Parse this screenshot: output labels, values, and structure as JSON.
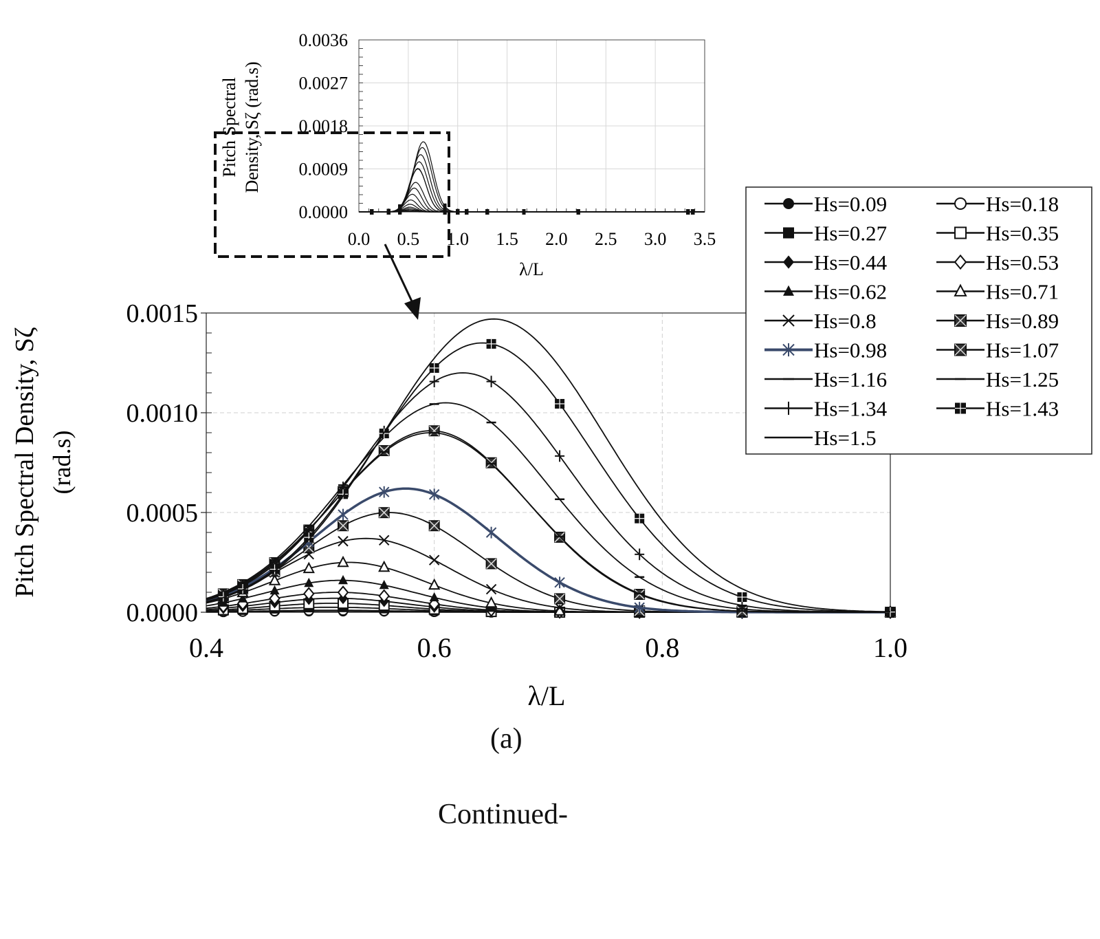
{
  "chart_data": [
    {
      "type": "line",
      "title": "",
      "xlabel": "λ/L",
      "ylabel": "Pitch Spectral Density, Sζ (rad.s)",
      "ylabel_line1": "Pitch Spectral Density, Sζ",
      "ylabel_line2": "(rad.s)",
      "xlim": [
        0.4,
        1.0
      ],
      "ylim": [
        0,
        0.0015
      ],
      "xticks": [
        "0.4",
        "0.6",
        "0.8",
        "1.0"
      ],
      "yticks": [
        "0.0000",
        "0.0005",
        "0.0010",
        "0.0015"
      ],
      "grid": true,
      "legend_position": "right",
      "marker_x": [
        0.415,
        0.432,
        0.46,
        0.49,
        0.52,
        0.556,
        0.6,
        0.65,
        0.71,
        0.78,
        0.87,
        1.0
      ],
      "series": [
        {
          "name": "Hs=0.09",
          "marker": "filled-circle",
          "peak": 3e-06,
          "peak_x": 0.51,
          "sigma": 0.06
        },
        {
          "name": "Hs=0.18",
          "marker": "open-circle",
          "peak": 1e-05,
          "peak_x": 0.51,
          "sigma": 0.06
        },
        {
          "name": "Hs=0.27",
          "marker": "filled-square",
          "peak": 2.5e-05,
          "peak_x": 0.51,
          "sigma": 0.06
        },
        {
          "name": "Hs=0.35",
          "marker": "open-square",
          "peak": 4.5e-05,
          "peak_x": 0.512,
          "sigma": 0.06
        },
        {
          "name": "Hs=0.44",
          "marker": "filled-diamond",
          "peak": 7e-05,
          "peak_x": 0.513,
          "sigma": 0.062
        },
        {
          "name": "Hs=0.53",
          "marker": "open-diamond",
          "peak": 0.0001,
          "peak_x": 0.515,
          "sigma": 0.064
        },
        {
          "name": "Hs=0.62",
          "marker": "filled-triangle",
          "peak": 0.00016,
          "peak_x": 0.518,
          "sigma": 0.066
        },
        {
          "name": "Hs=0.71",
          "marker": "open-triangle",
          "peak": 0.00025,
          "peak_x": 0.525,
          "sigma": 0.068
        },
        {
          "name": "Hs=0.8",
          "marker": "x",
          "peak": 0.00037,
          "peak_x": 0.54,
          "sigma": 0.072
        },
        {
          "name": "Hs=0.89",
          "marker": "boxed-x",
          "peak": 0.0005,
          "peak_x": 0.56,
          "sigma": 0.075
        },
        {
          "name": "Hs=0.98",
          "marker": "star",
          "peak": 0.00062,
          "peak_x": 0.575,
          "sigma": 0.08,
          "color": "#3a4a6b"
        },
        {
          "name": "Hs=1.07",
          "marker": "boxed-x",
          "peak": 0.00091,
          "peak_x": 0.597,
          "sigma": 0.085
        },
        {
          "name": "Hs=1.16",
          "marker": "dash",
          "peak": 0.0009,
          "peak_x": 0.597,
          "sigma": 0.086
        },
        {
          "name": "Hs=1.25",
          "marker": "dash",
          "peak": 0.00105,
          "peak_x": 0.61,
          "sigma": 0.09
        },
        {
          "name": "Hs=1.34",
          "marker": "plus",
          "peak": 0.0012,
          "peak_x": 0.625,
          "sigma": 0.092
        },
        {
          "name": "Hs=1.43",
          "marker": "filled-square-grid",
          "peak": 0.00135,
          "peak_x": 0.642,
          "sigma": 0.095
        },
        {
          "name": "Hs=1.5",
          "marker": "none",
          "peak": 0.00147,
          "peak_x": 0.652,
          "sigma": 0.097
        }
      ]
    },
    {
      "type": "line",
      "title": "",
      "xlabel": "λ/L",
      "ylabel": "Pitch Spectral Density, Sζ (rad.s)",
      "ylabel_line1": "Pitch Spectral",
      "ylabel_line2": "Density, Sζ (rad.s)",
      "xlim": [
        0,
        3.5
      ],
      "ylim": [
        0,
        0.0036
      ],
      "xticks": [
        "0.0",
        "0.5",
        "1.0",
        "1.5",
        "2.0",
        "2.5",
        "3.0",
        "3.5"
      ],
      "yticks": [
        "0.0000",
        "0.0009",
        "0.0018",
        "0.0027",
        "0.0036"
      ],
      "grid": true,
      "marker_x": [
        0.13,
        0.3,
        0.415,
        0.87,
        1.0,
        1.09,
        1.3,
        1.67,
        2.22,
        3.33,
        3.38
      ],
      "note": "inset showing full range; same series as main plot"
    }
  ],
  "caption": "(a)",
  "footer": "Continued-"
}
